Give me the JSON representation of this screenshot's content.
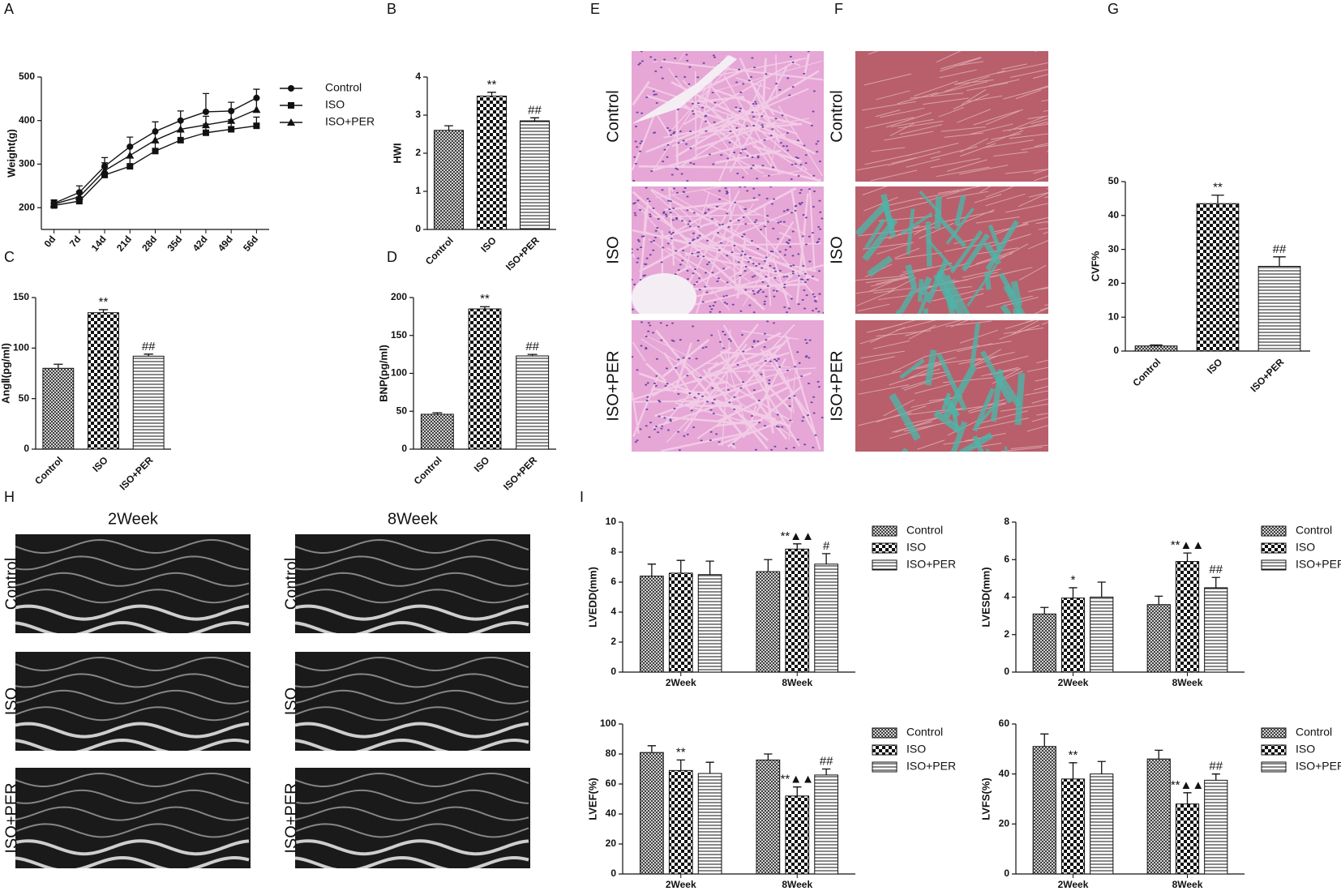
{
  "chart_data": [
    {
      "type": "line",
      "panel": "A",
      "ylabel": "Weight(g)",
      "x": [
        "0d",
        "7d",
        "14d",
        "21d",
        "28d",
        "35d",
        "42d",
        "49d",
        "56d"
      ],
      "ylim": [
        150,
        500
      ],
      "yticks": [
        200,
        300,
        400,
        500
      ],
      "series": [
        {
          "name": "Control",
          "marker": "circle",
          "values": [
            210,
            235,
            295,
            340,
            375,
            400,
            420,
            422,
            452
          ],
          "errors": [
            8,
            15,
            20,
            22,
            22,
            22,
            42,
            20,
            20
          ]
        },
        {
          "name": "ISO",
          "marker": "square",
          "values": [
            205,
            215,
            275,
            295,
            330,
            355,
            372,
            380,
            388
          ],
          "errors": [
            8,
            10,
            18,
            20,
            20,
            22,
            20,
            22,
            20
          ]
        },
        {
          "name": "ISO+PER",
          "marker": "triangle",
          "values": [
            208,
            225,
            285,
            320,
            355,
            380,
            390,
            400,
            425
          ],
          "errors": [
            8,
            12,
            18,
            20,
            20,
            22,
            20,
            22,
            25
          ]
        }
      ]
    },
    {
      "type": "bar",
      "panel": "B",
      "ylabel": "HWI",
      "categories": [
        "Control",
        "ISO",
        "ISO+PER"
      ],
      "values": [
        2.6,
        3.5,
        2.85
      ],
      "errors": [
        0.12,
        0.1,
        0.08
      ],
      "annotations": [
        null,
        "**",
        "##"
      ],
      "patterns": [
        "cross",
        "checker",
        "hlines"
      ],
      "ylim": [
        0,
        4
      ],
      "yticks": [
        0,
        1,
        2,
        3,
        4
      ]
    },
    {
      "type": "bar",
      "panel": "C",
      "ylabel": "AngⅡ(pg/ml)",
      "categories": [
        "Control",
        "ISO",
        "ISO+PER"
      ],
      "values": [
        80,
        135,
        92
      ],
      "errors": [
        4,
        3,
        2
      ],
      "annotations": [
        null,
        "**",
        "##"
      ],
      "patterns": [
        "cross",
        "checker",
        "hlines"
      ],
      "ylim": [
        0,
        150
      ],
      "yticks": [
        0,
        50,
        100,
        150
      ]
    },
    {
      "type": "bar",
      "panel": "D",
      "ylabel": "BNP(pg/ml)",
      "categories": [
        "Control",
        "ISO",
        "ISO+PER"
      ],
      "values": [
        46,
        185,
        123
      ],
      "errors": [
        2,
        3,
        2
      ],
      "annotations": [
        null,
        "**",
        "##"
      ],
      "patterns": [
        "cross",
        "checker",
        "hlines"
      ],
      "ylim": [
        0,
        200
      ],
      "yticks": [
        0,
        50,
        100,
        150,
        200
      ]
    },
    {
      "type": "bar",
      "panel": "G",
      "ylabel": "CVF%",
      "categories": [
        "Control",
        "ISO",
        "ISO+PER"
      ],
      "values": [
        1.5,
        43.5,
        25
      ],
      "errors": [
        0.3,
        2.5,
        2.8
      ],
      "annotations": [
        null,
        "**",
        "##"
      ],
      "patterns": [
        "cross",
        "checker",
        "hlines"
      ],
      "ylim": [
        0,
        50
      ],
      "yticks": [
        0,
        10,
        20,
        30,
        40,
        50
      ]
    },
    {
      "type": "grouped-bar",
      "panel": "I",
      "ylabel": "LVEDD(mm)",
      "categories": [
        "2Week",
        "8Week"
      ],
      "ylim": [
        0,
        10
      ],
      "yticks": [
        0,
        2,
        4,
        6,
        8,
        10
      ],
      "series": [
        {
          "name": "Control",
          "pattern": "cross",
          "values": [
            6.4,
            6.7
          ],
          "errors": [
            0.8,
            0.8
          ],
          "annotations": [
            null,
            null
          ]
        },
        {
          "name": "ISO",
          "pattern": "checker",
          "values": [
            6.6,
            8.2
          ],
          "errors": [
            0.85,
            0.35
          ],
          "annotations": [
            null,
            "**▲▲"
          ]
        },
        {
          "name": "ISO+PER",
          "pattern": "hlines",
          "values": [
            6.5,
            7.2
          ],
          "errors": [
            0.9,
            0.7
          ],
          "annotations": [
            null,
            "#"
          ]
        }
      ]
    },
    {
      "type": "grouped-bar",
      "ylabel": "LVESD(mm)",
      "categories": [
        "2Week",
        "8Week"
      ],
      "ylim": [
        0,
        8
      ],
      "yticks": [
        0,
        2,
        4,
        6,
        8
      ],
      "series": [
        {
          "name": "Control",
          "pattern": "cross",
          "values": [
            3.1,
            3.6
          ],
          "errors": [
            0.35,
            0.45
          ],
          "annotations": [
            null,
            null
          ]
        },
        {
          "name": "ISO",
          "pattern": "checker",
          "values": [
            3.95,
            5.9
          ],
          "errors": [
            0.55,
            0.45
          ],
          "annotations": [
            "*",
            "**▲▲"
          ]
        },
        {
          "name": "ISO+PER",
          "pattern": "hlines",
          "values": [
            4.0,
            4.5
          ],
          "errors": [
            0.8,
            0.55
          ],
          "annotations": [
            null,
            "##"
          ]
        }
      ]
    },
    {
      "type": "grouped-bar",
      "ylabel": "LVEF(%)",
      "categories": [
        "2Week",
        "8Week"
      ],
      "ylim": [
        0,
        100
      ],
      "yticks": [
        0,
        20,
        40,
        60,
        80,
        100
      ],
      "series": [
        {
          "name": "Control",
          "pattern": "cross",
          "values": [
            81,
            76
          ],
          "errors": [
            4.5,
            4
          ]
        },
        {
          "name": "ISO",
          "pattern": "checker",
          "values": [
            69,
            52
          ],
          "errors": [
            7,
            6
          ],
          "annotations": [
            "**",
            "**▲▲"
          ]
        },
        {
          "name": "ISO+PER",
          "pattern": "hlines",
          "values": [
            67,
            66
          ],
          "errors": [
            7.5,
            4
          ],
          "annotations": [
            null,
            "##"
          ]
        }
      ]
    },
    {
      "type": "grouped-bar",
      "ylabel": "LVFS(%)",
      "categories": [
        "2Week",
        "8Week"
      ],
      "ylim": [
        0,
        60
      ],
      "yticks": [
        0,
        20,
        40,
        60
      ],
      "series": [
        {
          "name": "Control",
          "pattern": "cross",
          "values": [
            51,
            46
          ],
          "errors": [
            5,
            3.5
          ]
        },
        {
          "name": "ISO",
          "pattern": "checker",
          "values": [
            38,
            28
          ],
          "errors": [
            6.5,
            4.5
          ],
          "annotations": [
            "**",
            "**▲▲"
          ]
        },
        {
          "name": "ISO+PER",
          "pattern": "hlines",
          "values": [
            40,
            37.5
          ],
          "errors": [
            5,
            2.5
          ],
          "annotations": [
            null,
            "##"
          ]
        }
      ]
    }
  ],
  "images": [
    {
      "panel": "E",
      "kind": "he",
      "rows": [
        "Control",
        "ISO",
        "ISO+PER"
      ]
    },
    {
      "panel": "F",
      "kind": "masson",
      "rows": [
        "Control",
        "ISO",
        "ISO+PER"
      ]
    },
    {
      "panel": "H",
      "kind": "echo",
      "columns": [
        "2Week",
        "8Week"
      ],
      "rows": [
        "Control",
        "ISO",
        "ISO+PER"
      ]
    }
  ]
}
